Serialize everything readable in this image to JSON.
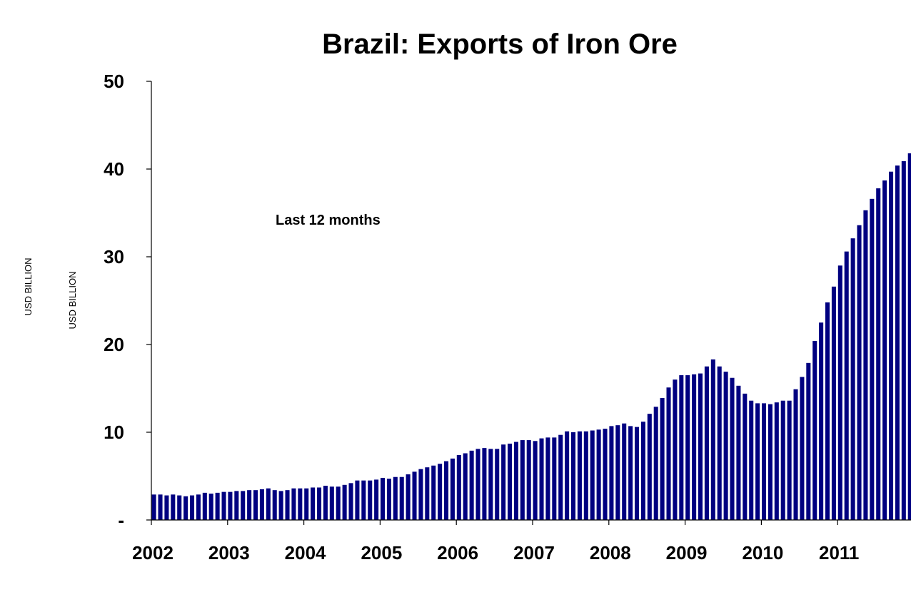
{
  "chart_data": {
    "type": "bar",
    "title": "Brazil: Exports of Iron Ore",
    "ylabel_outer": "USD BILLION",
    "ylabel_inner": "USD BILLION",
    "annotation": "Last 12 months",
    "ylim": [
      0,
      50
    ],
    "yticks": [
      {
        "value": 0,
        "label": "-"
      },
      {
        "value": 10,
        "label": "10"
      },
      {
        "value": 20,
        "label": "20"
      },
      {
        "value": 30,
        "label": "30"
      },
      {
        "value": 40,
        "label": "40"
      },
      {
        "value": 50,
        "label": "50"
      }
    ],
    "year_labels": [
      "2002",
      "2003",
      "2004",
      "2005",
      "2006",
      "2007",
      "2008",
      "2009",
      "2010",
      "2011"
    ],
    "start": "2002-01",
    "frequency": "monthly",
    "bar_color": "#000080",
    "values": [
      2.9,
      2.9,
      2.8,
      2.9,
      2.8,
      2.7,
      2.8,
      2.9,
      3.1,
      3.0,
      3.1,
      3.2,
      3.2,
      3.3,
      3.3,
      3.4,
      3.4,
      3.5,
      3.6,
      3.4,
      3.3,
      3.4,
      3.6,
      3.6,
      3.6,
      3.7,
      3.7,
      3.9,
      3.8,
      3.8,
      4.0,
      4.2,
      4.5,
      4.5,
      4.5,
      4.6,
      4.8,
      4.7,
      4.9,
      4.9,
      5.2,
      5.5,
      5.8,
      6.0,
      6.2,
      6.4,
      6.7,
      7.0,
      7.4,
      7.6,
      7.9,
      8.1,
      8.2,
      8.1,
      8.1,
      8.6,
      8.7,
      8.9,
      9.1,
      9.1,
      9.0,
      9.3,
      9.4,
      9.4,
      9.7,
      10.1,
      10.0,
      10.1,
      10.1,
      10.2,
      10.3,
      10.4,
      10.7,
      10.8,
      11.0,
      10.7,
      10.6,
      11.2,
      12.1,
      12.9,
      13.9,
      15.1,
      16.0,
      16.5,
      16.5,
      16.6,
      16.7,
      17.5,
      18.3,
      17.5,
      16.9,
      16.2,
      15.3,
      14.4,
      13.6,
      13.3,
      13.3,
      13.2,
      13.4,
      13.6,
      13.6,
      14.9,
      16.3,
      17.9,
      20.4,
      22.5,
      24.8,
      26.6,
      29.0,
      30.6,
      32.1,
      33.6,
      35.3,
      36.6,
      37.8,
      38.7,
      39.7,
      40.4,
      40.9,
      41.8
    ]
  }
}
